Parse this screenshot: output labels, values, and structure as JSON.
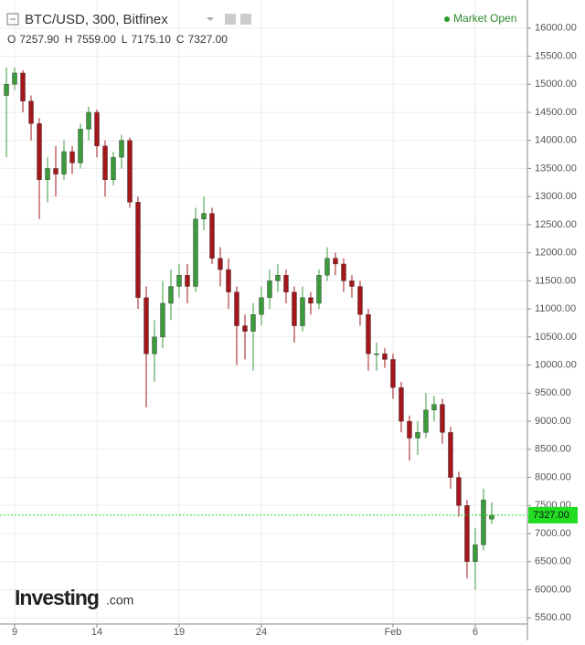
{
  "chart_data": {
    "type": "candlestick",
    "title": "BTC/USD, 300, Bitfinex",
    "status": "Market Open",
    "ohlc_header": [
      {
        "label": "O",
        "value": "7257.90"
      },
      {
        "label": "H",
        "value": "7559.00"
      },
      {
        "label": "L",
        "value": "7175.10"
      },
      {
        "label": "C",
        "value": "7327.00"
      }
    ],
    "logo": {
      "brand": "Investing",
      "suffix": ".com"
    },
    "x": [
      8.5,
      9,
      9.5,
      10,
      10.5,
      11,
      11.5,
      12,
      12.5,
      13,
      13.5,
      14,
      14.5,
      15,
      15.5,
      16,
      16.5,
      17,
      17.5,
      18,
      18.5,
      19,
      19.5,
      20,
      20.5,
      21,
      21.5,
      22,
      22.5,
      23,
      23.5,
      24,
      24.5,
      25,
      25.5,
      26,
      26.5,
      27,
      27.5,
      28,
      28.5,
      29,
      29.5,
      30,
      30.5,
      31,
      31.5,
      32,
      32.5,
      33,
      33.5,
      34,
      34.5,
      35,
      35.5,
      36,
      36.5,
      37,
      37.5,
      38
    ],
    "open": [
      14800,
      15000,
      15200,
      14700,
      14300,
      13300,
      13500,
      13400,
      13800,
      13600,
      14200,
      14500,
      13900,
      13300,
      13700,
      14000,
      12900,
      11200,
      10200,
      10500,
      11100,
      11400,
      11600,
      11400,
      12600,
      12700,
      11900,
      11700,
      11300,
      10700,
      10600,
      10900,
      11200,
      11500,
      11600,
      11300,
      10700,
      11200,
      11100,
      11600,
      11900,
      11800,
      11500,
      11400,
      10900,
      10200,
      10200,
      10100,
      9600,
      9000,
      8700,
      8800,
      9200,
      9300,
      8800,
      8000,
      7500,
      6500,
      6800,
      7257.9
    ],
    "high": [
      15300,
      15300,
      15250,
      14800,
      14400,
      13700,
      13900,
      14000,
      13900,
      14300,
      14600,
      14550,
      14000,
      13800,
      14100,
      14050,
      13000,
      11400,
      10800,
      11500,
      11700,
      11800,
      11800,
      12800,
      13000,
      12800,
      12100,
      11900,
      11400,
      10900,
      11100,
      11400,
      11700,
      11800,
      11700,
      11400,
      11400,
      11300,
      11700,
      12100,
      12000,
      11900,
      11600,
      11500,
      11000,
      10400,
      10300,
      10200,
      9700,
      9100,
      9000,
      9500,
      9450,
      9400,
      8900,
      8100,
      7600,
      7100,
      7800,
      7559
    ],
    "low": [
      13700,
      14900,
      14500,
      14000,
      12600,
      12900,
      13000,
      13300,
      13400,
      13500,
      14000,
      13700,
      13000,
      13200,
      13500,
      12800,
      11000,
      9250,
      9700,
      10300,
      10800,
      11200,
      11100,
      11300,
      12400,
      11800,
      11400,
      11000,
      10000,
      10100,
      9900,
      10700,
      11000,
      11300,
      11100,
      10400,
      10600,
      10900,
      11000,
      11500,
      11600,
      11300,
      11200,
      10700,
      9900,
      9900,
      9950,
      9400,
      8800,
      8300,
      8400,
      8700,
      9000,
      8600,
      7800,
      7300,
      6200,
      6000,
      6700,
      7175.1
    ],
    "close": [
      15000,
      15200,
      14700,
      14300,
      13300,
      13500,
      13400,
      13800,
      13600,
      14200,
      14500,
      13900,
      13300,
      13700,
      14000,
      12900,
      11200,
      10200,
      10500,
      11100,
      11400,
      11600,
      11400,
      12600,
      12700,
      11900,
      11700,
      11300,
      10700,
      10600,
      10900,
      11200,
      11500,
      11600,
      11300,
      10700,
      11200,
      11100,
      11600,
      11900,
      11800,
      11500,
      11400,
      10900,
      10200,
      10200,
      10100,
      9600,
      9000,
      8700,
      8800,
      9200,
      9300,
      8800,
      8000,
      7500,
      6500,
      6800,
      7600,
      7327
    ],
    "up_color": "#3c9a3c",
    "down_color": "#a3161a",
    "last_price": {
      "value": 7327,
      "label": "7327.00"
    },
    "last_price_color": "#22dd22",
    "xlim": [
      8.11,
      40.17
    ],
    "xticks": [
      9,
      14,
      19,
      24,
      {
        "value": 32,
        "label": "Feb"
      },
      {
        "value": 37,
        "label": "6"
      }
    ],
    "ylim": [
      5390,
      16500
    ],
    "yticks": [
      {
        "value": 5500,
        "label": "5500.00"
      },
      {
        "value": 6000,
        "label": "6000.00"
      },
      {
        "value": 6500,
        "label": "6500.00"
      },
      {
        "value": 7000,
        "label": "7000.00"
      },
      {
        "value": 7500,
        "label": "7500.00"
      },
      {
        "value": 8000,
        "label": "8000.00"
      },
      {
        "value": 8500,
        "label": "8500.00"
      },
      {
        "value": 9000,
        "label": "9000.00"
      },
      {
        "value": 9500,
        "label": "9500.00"
      },
      {
        "value": 10000,
        "label": "10000.00"
      },
      {
        "value": 10500,
        "label": "10500.00"
      },
      {
        "value": 11000,
        "label": "11000.00"
      },
      {
        "value": 11500,
        "label": "11500.00"
      },
      {
        "value": 12000,
        "label": "12000.00"
      },
      {
        "value": 12500,
        "label": "12500.00"
      },
      {
        "value": 13000,
        "label": "13000.00"
      },
      {
        "value": 13500,
        "label": "13500.00"
      },
      {
        "value": 14000,
        "label": "14000.00"
      },
      {
        "value": 14500,
        "label": "14500.00"
      },
      {
        "value": 15000,
        "label": "15000.00"
      },
      {
        "value": 15500,
        "label": "15500.00"
      },
      {
        "value": 16000,
        "label": "16000.00"
      }
    ],
    "grid": true
  }
}
